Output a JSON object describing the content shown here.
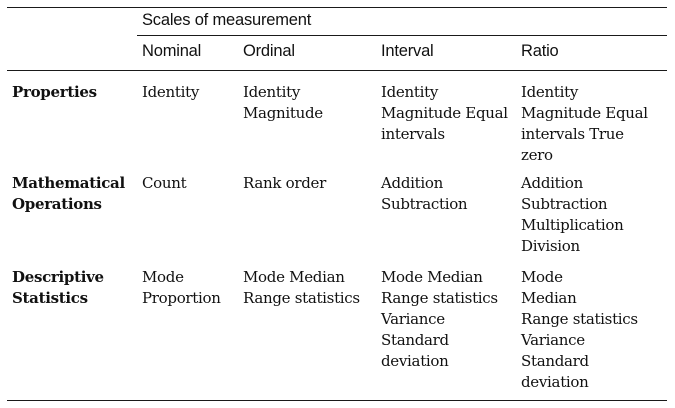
{
  "table": {
    "group_header": "Scales of measurement",
    "columns": [
      "Nominal",
      "Ordinal",
      "Interval",
      "Ratio"
    ],
    "rows": [
      {
        "label": "Properties",
        "cells": [
          "Identity",
          "Identity\nMagnitude",
          "Identity\nMagnitude Equal\nintervals",
          "Identity\nMagnitude Equal\nintervals True\nzero"
        ]
      },
      {
        "label": "Mathematical\nOperations",
        "cells": [
          "Count",
          "Rank order",
          "Addition\nSubtraction",
          "Addition\nSubtraction\nMultiplication\nDivision"
        ]
      },
      {
        "label": "Descriptive\nStatistics",
        "cells": [
          "Mode\nProportion",
          "Mode Median\nRange statistics",
          "Mode Median\nRange statistics\nVariance\nStandard\ndeviation",
          "Mode\nMedian\nRange statistics\nVariance\nStandard\ndeviation"
        ]
      }
    ]
  }
}
